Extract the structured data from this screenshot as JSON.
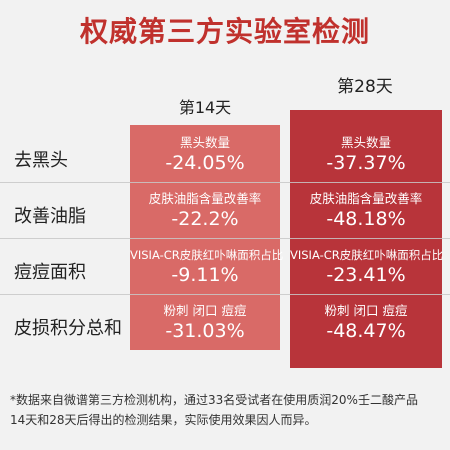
{
  "title": "权威第三方实验室检测",
  "columns": {
    "day14": "第14天",
    "day28": "第28天"
  },
  "rows": [
    {
      "label": "去黑头",
      "day14": {
        "metric": "黑头数量",
        "value": "-24.05%"
      },
      "day28": {
        "metric": "黑头数量",
        "value": "-37.37%"
      }
    },
    {
      "label": "改善油脂",
      "day14": {
        "metric": "皮肤油脂含量改善率",
        "value": "-22.2%"
      },
      "day28": {
        "metric": "皮肤油脂含量改善率",
        "value": "-48.18%"
      }
    },
    {
      "label": "痘痘面积",
      "day14": {
        "metric": "VISIA-CR皮肤红卟啉面积占比",
        "value": "-9.11%"
      },
      "day28": {
        "metric": "VISIA-CR皮肤红卟啉面积占比",
        "value": "-23.41%"
      }
    },
    {
      "label": "皮损积分总和",
      "day14": {
        "metric": "粉刺 闭口 痘痘",
        "value": "-31.03%"
      },
      "day28": {
        "metric": "粉刺 闭口 痘痘",
        "value": "-48.47%"
      }
    }
  ],
  "footnote": {
    "line1": "*数据来自微谱第三方检测机构，通过33名受试者在使用质润20%壬二酸产品",
    "line2": "14天和28天后得出的检测结果，实际使用效果因人而异。"
  },
  "colors": {
    "title": "#c0312d",
    "day14_bg": "#d96a67",
    "day28_bg": "#b8343a",
    "background": "#f2f2f2"
  }
}
